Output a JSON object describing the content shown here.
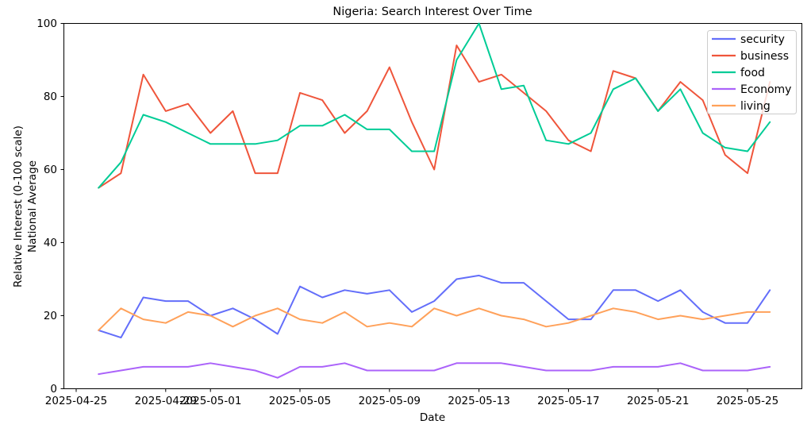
{
  "chart_data": {
    "type": "line",
    "title": "Nigeria: Search Interest Over Time",
    "xlabel": "Date",
    "ylabel_lines": [
      "Relative Interest (0-100 scale)",
      "National Average"
    ],
    "ylim": [
      0,
      100
    ],
    "yticks": [
      0,
      20,
      40,
      60,
      80,
      100
    ],
    "xticks": [
      "2025-04-25",
      "2025-04-29",
      "2025-05-01",
      "2025-05-05",
      "2025-05-09",
      "2025-05-13",
      "2025-05-17",
      "2025-05-21",
      "2025-05-25"
    ],
    "grid": false,
    "legend_position": "upper right",
    "x_dates": [
      "2025-04-26",
      "2025-04-27",
      "2025-04-28",
      "2025-04-29",
      "2025-04-30",
      "2025-05-01",
      "2025-05-02",
      "2025-05-03",
      "2025-05-04",
      "2025-05-05",
      "2025-05-06",
      "2025-05-07",
      "2025-05-08",
      "2025-05-09",
      "2025-05-10",
      "2025-05-11",
      "2025-05-12",
      "2025-05-13",
      "2025-05-14",
      "2025-05-15",
      "2025-05-16",
      "2025-05-17",
      "2025-05-18",
      "2025-05-19",
      "2025-05-20",
      "2025-05-21",
      "2025-05-22",
      "2025-05-23",
      "2025-05-24",
      "2025-05-25",
      "2025-05-26"
    ],
    "series": [
      {
        "name": "security",
        "color": "#636EFA",
        "values": [
          16,
          14,
          25,
          24,
          24,
          20,
          22,
          19,
          15,
          28,
          25,
          27,
          26,
          27,
          21,
          24,
          30,
          31,
          29,
          29,
          24,
          19,
          19,
          27,
          27,
          24,
          27,
          21,
          18,
          18,
          27
        ]
      },
      {
        "name": "business",
        "color": "#EF553B",
        "values": [
          55,
          59,
          86,
          76,
          78,
          70,
          76,
          59,
          59,
          81,
          79,
          70,
          76,
          88,
          73,
          60,
          94,
          84,
          86,
          81,
          76,
          68,
          65,
          87,
          85,
          76,
          84,
          79,
          64,
          59,
          84
        ]
      },
      {
        "name": "food",
        "color": "#00CC96",
        "values": [
          55,
          62,
          75,
          73,
          70,
          67,
          67,
          67,
          68,
          72,
          72,
          75,
          71,
          71,
          65,
          65,
          90,
          100,
          82,
          83,
          68,
          67,
          70,
          82,
          85,
          76,
          82,
          70,
          66,
          65,
          73
        ]
      },
      {
        "name": "Economy",
        "color": "#AB63FA",
        "values": [
          4,
          5,
          6,
          6,
          6,
          7,
          6,
          5,
          3,
          6,
          6,
          7,
          5,
          5,
          5,
          5,
          7,
          7,
          7,
          6,
          5,
          5,
          5,
          6,
          6,
          6,
          7,
          5,
          5,
          5,
          6
        ]
      },
      {
        "name": "living",
        "color": "#FFA15A",
        "values": [
          16,
          22,
          19,
          18,
          21,
          20,
          17,
          20,
          22,
          19,
          18,
          21,
          17,
          18,
          17,
          22,
          20,
          22,
          20,
          19,
          17,
          18,
          20,
          22,
          21,
          19,
          20,
          19,
          20,
          21,
          21
        ]
      }
    ]
  }
}
